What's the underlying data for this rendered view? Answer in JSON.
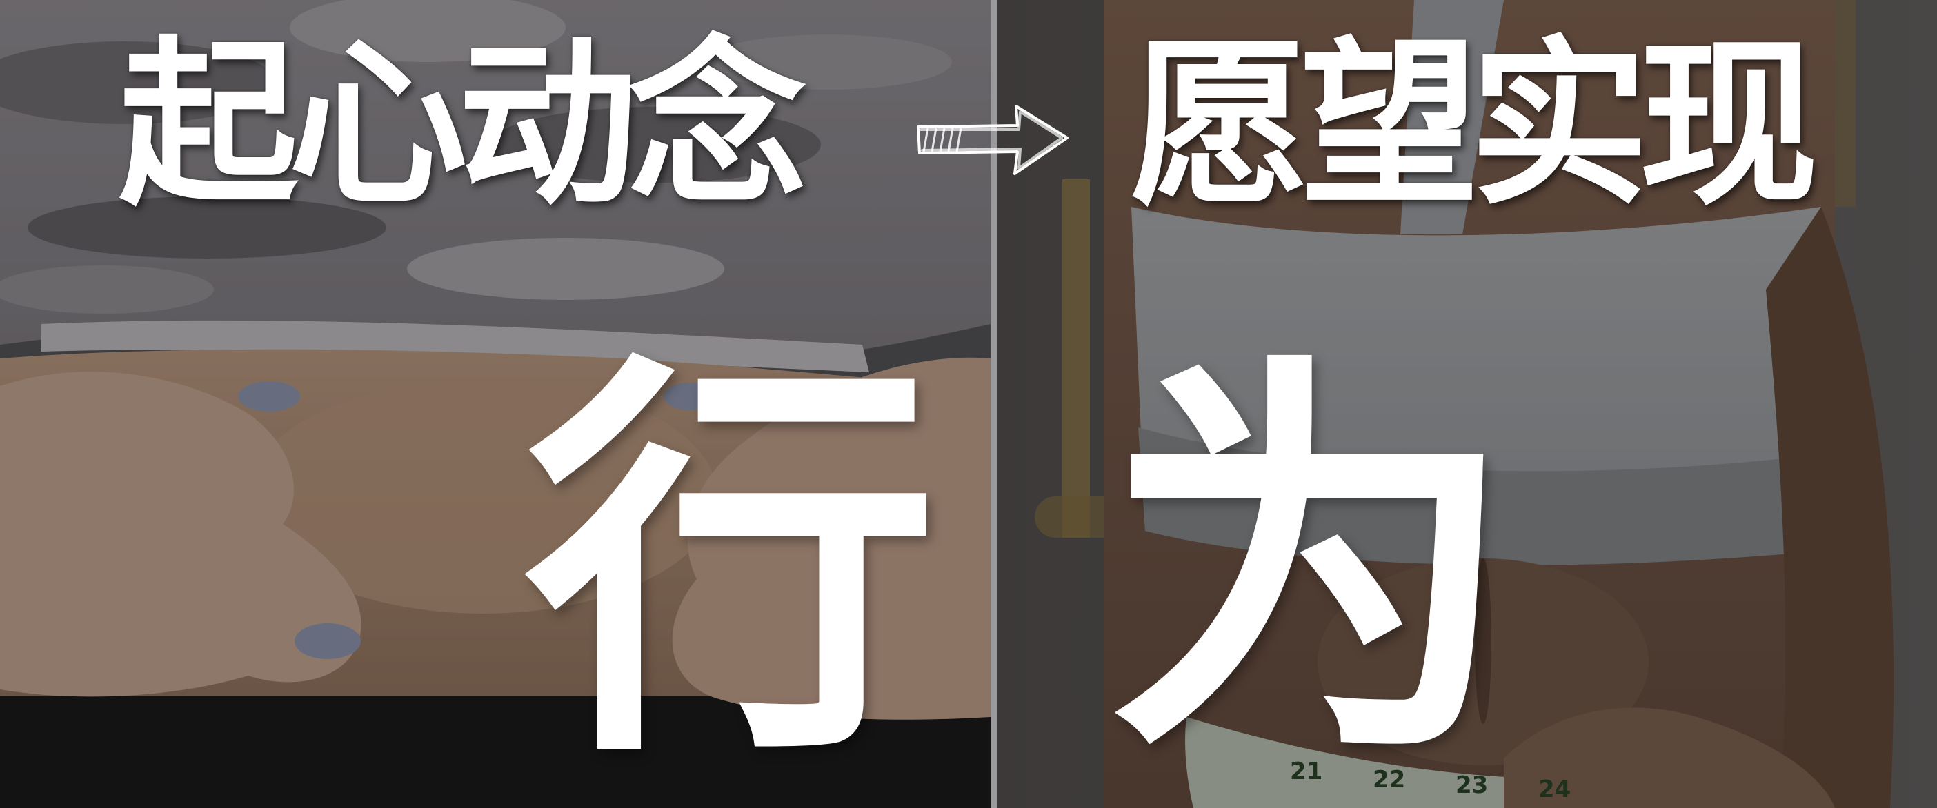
{
  "headline": {
    "left": "起心动念",
    "right": "愿望实现"
  },
  "center": {
    "left_char": "行",
    "right_char": "为"
  },
  "tape_numbers": [
    "21",
    "22",
    "23",
    "24"
  ],
  "icons": [
    "sketch-arrow-right-icon"
  ],
  "colors": {
    "text": "#ffffff",
    "left_shirt": "#8d8a8f",
    "left_skin": "#b08f76",
    "right_top": "#a7aaad",
    "right_skin": "#7a5d4d",
    "divider": "#9a9a9c",
    "overlay": "#000000"
  }
}
